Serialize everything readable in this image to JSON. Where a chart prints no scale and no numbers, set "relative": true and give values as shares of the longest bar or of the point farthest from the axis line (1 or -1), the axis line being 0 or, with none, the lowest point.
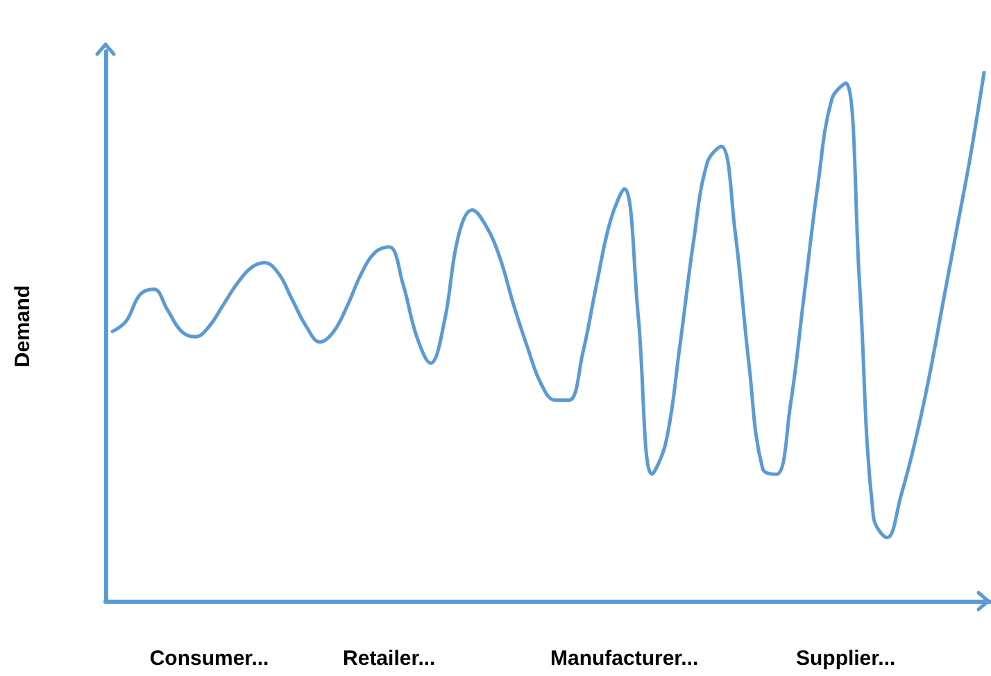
{
  "chart_data": {
    "type": "line",
    "relative": true,
    "ylabel": "Demand",
    "categories": [
      null,
      null,
      null,
      null,
      null,
      null,
      null,
      "Consumer...",
      null,
      null,
      null,
      null,
      null,
      null,
      null,
      null,
      null,
      null,
      null,
      null,
      "Retailer...",
      null,
      null,
      null,
      null,
      null,
      null,
      null,
      null,
      null,
      null,
      null,
      null,
      null,
      null,
      null,
      null,
      "Manufacturer...",
      null,
      null,
      null,
      null,
      null,
      null,
      null,
      null,
      null,
      null,
      null,
      null,
      null,
      null,
      null,
      "Supplier...",
      null,
      null,
      null,
      null,
      null,
      null,
      null,
      null,
      null,
      null
    ],
    "series": [
      {
        "color": "#5b9bd5",
        "values": [
          0.51,
          0.53,
          0.58,
          0.59,
          0.55,
          0.51,
          0.5,
          0.52,
          0.56,
          0.6,
          0.63,
          0.64,
          0.62,
          0.57,
          0.52,
          0.49,
          0.51,
          0.56,
          0.62,
          0.66,
          0.67,
          0.6,
          0.5,
          0.45,
          0.53,
          0.69,
          0.74,
          0.71,
          0.65,
          0.56,
          0.48,
          0.41,
          0.38,
          0.38,
          0.47,
          0.6,
          0.72,
          0.78,
          0.54,
          0.24,
          0.3,
          0.48,
          0.68,
          0.83,
          0.86,
          0.7,
          0.45,
          0.25,
          0.24,
          0.37,
          0.58,
          0.79,
          0.95,
          0.98,
          0.6,
          0.16,
          0.12,
          0.2,
          0.3,
          0.42,
          0.56,
          0.7,
          0.84,
          1
        ]
      }
    ],
    "marker": "none",
    "line_style": "solid"
  }
}
